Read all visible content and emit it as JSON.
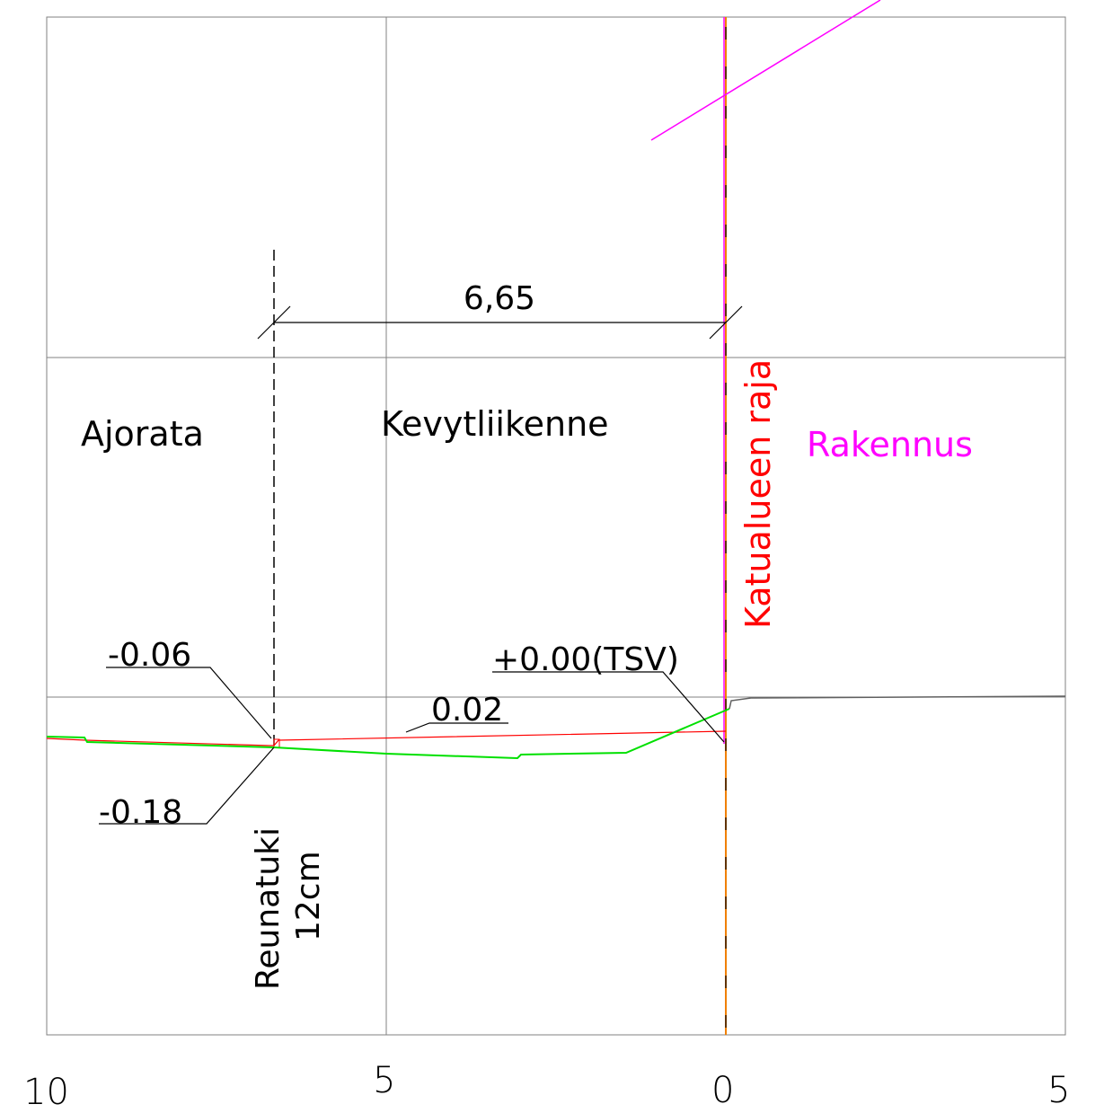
{
  "zones": {
    "roadway": "Ajorata",
    "light_traffic": "Kevytliikenne",
    "street_boundary": "Katualueen raja",
    "building": "Rakennus"
  },
  "dimension": {
    "width_label": "6,65"
  },
  "levels": {
    "curb_top": "-0.06",
    "curb_bottom": "-0.18",
    "reference": "+0.00(TSV)",
    "slope": "0.02"
  },
  "curb": {
    "name": "Reunatuki",
    "height": "12cm"
  },
  "axis": {
    "ticks": [
      "10",
      "5",
      "0",
      "5"
    ]
  },
  "colors": {
    "grid": "#808080",
    "boundary": "#ff0000",
    "building": "#ff00ff",
    "ground": "#00e000",
    "orange_axis": "#f08000",
    "ink": "#000000"
  }
}
